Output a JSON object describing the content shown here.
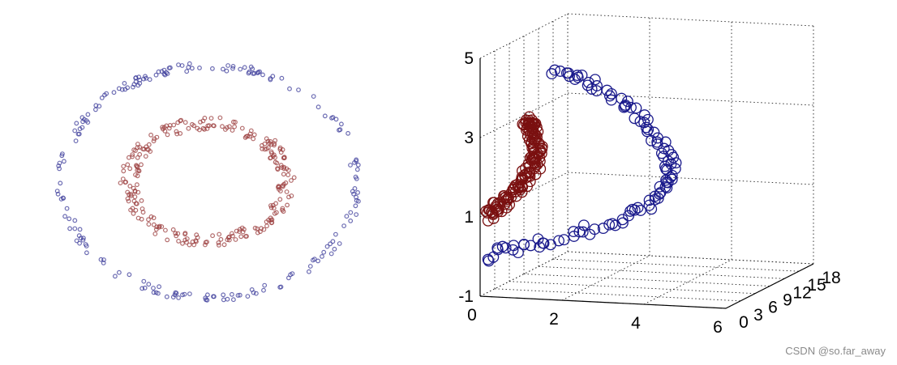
{
  "chart_data": [
    {
      "type": "scatter",
      "title": "",
      "xlabel": "",
      "ylabel": "",
      "grid": false,
      "axes_visible": false,
      "series": [
        {
          "color": "#3b3b9a",
          "shape": "outer-ring",
          "approx_points": 200
        },
        {
          "color": "#9a3b3b",
          "shape": "inner-ring",
          "approx_points": 250
        }
      ]
    },
    {
      "type": "scatter",
      "projection": "3d",
      "title": "",
      "grid": true,
      "xlim": [
        0,
        6
      ],
      "ylim": [
        0,
        18
      ],
      "zlim": [
        -1,
        5
      ],
      "x_ticks": [
        "0",
        "2",
        "4",
        "6"
      ],
      "y_ticks": [
        "0",
        "3",
        "6",
        "9",
        "12",
        "15",
        "18"
      ],
      "z_ticks": [
        "-1",
        "1",
        "3",
        "5"
      ],
      "marker": "open-circle",
      "series": [
        {
          "color": "#1a1a8c",
          "shape": "v-curve",
          "approx_points": 200
        },
        {
          "color": "#7a1010",
          "shape": "compact-arm",
          "approx_points": 250
        }
      ]
    }
  ],
  "watermark": "CSDN @so.far_away"
}
